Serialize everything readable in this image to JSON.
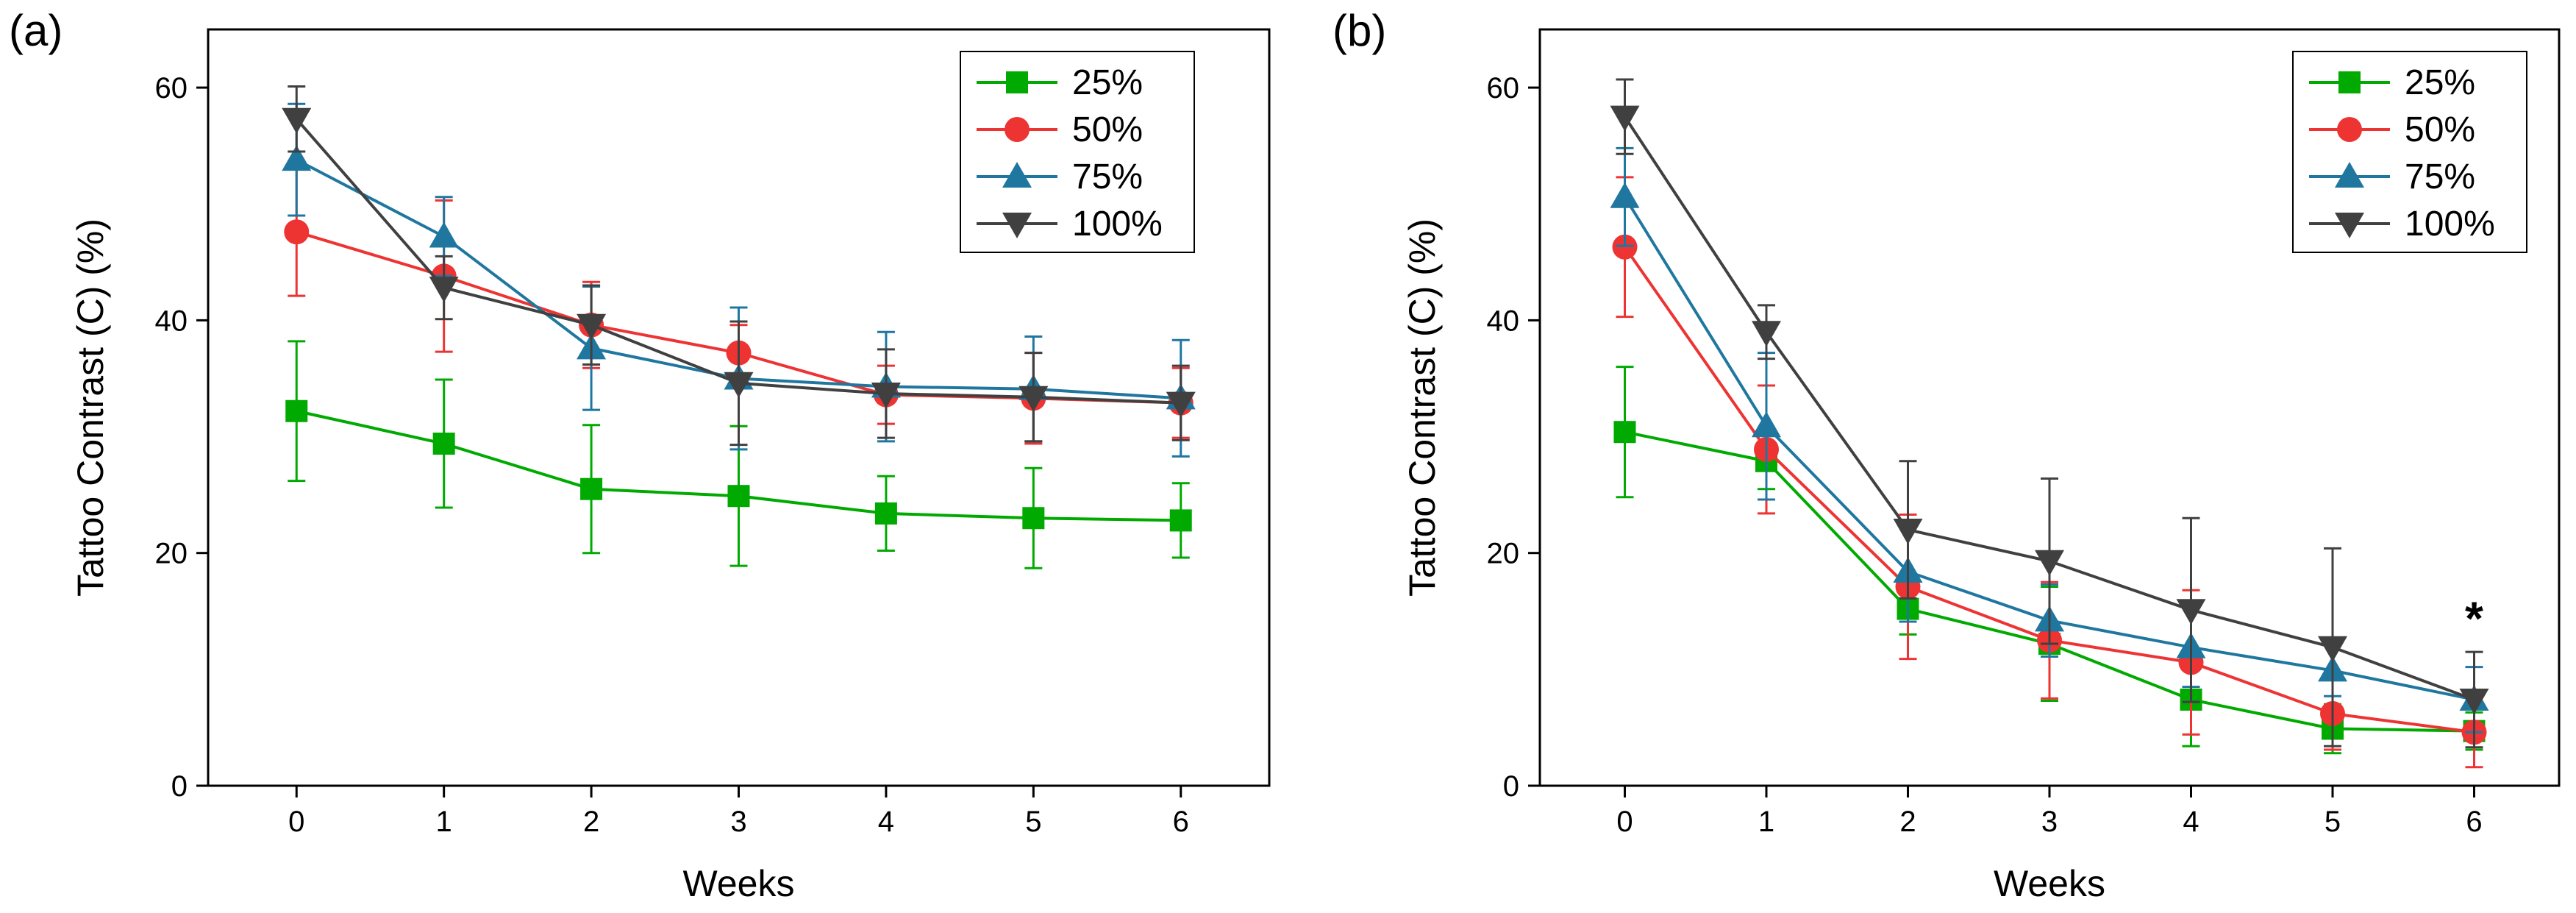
{
  "chart_data": [
    {
      "panel_label": "(a)",
      "type": "line",
      "xlabel": "Weeks",
      "ylabel": "Tattoo Contrast (C) (%)",
      "xlim": [
        -0.6,
        6.6
      ],
      "ylim": [
        0,
        65
      ],
      "x_ticks": [
        0,
        1,
        2,
        3,
        4,
        5,
        6
      ],
      "y_ticks": [
        0,
        20,
        40,
        60
      ],
      "x": [
        0,
        1,
        2,
        3,
        4,
        5,
        6
      ],
      "legend_position": "top-right",
      "series": [
        {
          "name": "25%",
          "color": "#00aa00",
          "marker": "square",
          "values": [
            32.2,
            29.4,
            25.5,
            24.9,
            23.4,
            23.0,
            22.8
          ],
          "errors": [
            6.0,
            5.5,
            5.5,
            6.0,
            3.2,
            4.3,
            3.2
          ]
        },
        {
          "name": "50%",
          "color": "#ee3333",
          "marker": "circle",
          "values": [
            47.6,
            43.8,
            39.6,
            37.2,
            33.6,
            33.3,
            32.9
          ],
          "errors": [
            5.5,
            6.5,
            3.7,
            2.4,
            2.5,
            3.9,
            3.0
          ]
        },
        {
          "name": "75%",
          "color": "#1f77a0",
          "marker": "triangle-up",
          "values": [
            53.8,
            47.2,
            37.6,
            35.0,
            34.3,
            34.1,
            33.3
          ],
          "errors": [
            4.8,
            3.4,
            5.3,
            6.1,
            4.7,
            4.5,
            5.0
          ]
        },
        {
          "name": "100%",
          "color": "#404040",
          "marker": "triangle-down",
          "values": [
            57.3,
            42.8,
            39.6,
            34.6,
            33.7,
            33.4,
            32.9
          ],
          "errors": [
            2.8,
            2.7,
            3.4,
            5.3,
            3.8,
            3.8,
            3.2
          ]
        }
      ],
      "annotations": []
    },
    {
      "panel_label": "(b)",
      "type": "line",
      "xlabel": "Weeks",
      "ylabel": "Tattoo Contrast (C) (%)",
      "xlim": [
        -0.6,
        6.6
      ],
      "ylim": [
        0,
        65
      ],
      "x_ticks": [
        0,
        1,
        2,
        3,
        4,
        5,
        6
      ],
      "y_ticks": [
        0,
        20,
        40,
        60
      ],
      "x": [
        0,
        1,
        2,
        3,
        4,
        5,
        6
      ],
      "legend_position": "top-right",
      "series": [
        {
          "name": "25%",
          "color": "#00aa00",
          "marker": "square",
          "values": [
            30.4,
            27.9,
            15.2,
            12.2,
            7.4,
            4.9,
            4.7
          ],
          "errors": [
            5.6,
            2.4,
            2.2,
            4.9,
            4.0,
            2.1,
            1.6
          ]
        },
        {
          "name": "50%",
          "color": "#ee3333",
          "marker": "circle",
          "values": [
            46.3,
            28.9,
            17.1,
            12.5,
            10.6,
            6.2,
            4.6
          ],
          "errors": [
            6.0,
            5.5,
            6.2,
            5.0,
            6.2,
            3.1,
            3.0
          ]
        },
        {
          "name": "75%",
          "color": "#1f77a0",
          "marker": "triangle-up",
          "values": [
            50.6,
            30.9,
            18.4,
            14.2,
            11.9,
            9.9,
            7.4
          ],
          "errors": [
            4.2,
            6.3,
            4.3,
            3.1,
            3.4,
            2.2,
            2.8
          ]
        },
        {
          "name": "100%",
          "color": "#404040",
          "marker": "triangle-down",
          "values": [
            57.5,
            39.0,
            22.0,
            19.3,
            15.1,
            11.9,
            7.4
          ],
          "errors": [
            3.2,
            2.3,
            5.9,
            7.1,
            7.9,
            8.5,
            4.1
          ]
        }
      ],
      "annotations": [
        {
          "text": "*",
          "x": 6,
          "y": 14.5
        }
      ]
    }
  ]
}
